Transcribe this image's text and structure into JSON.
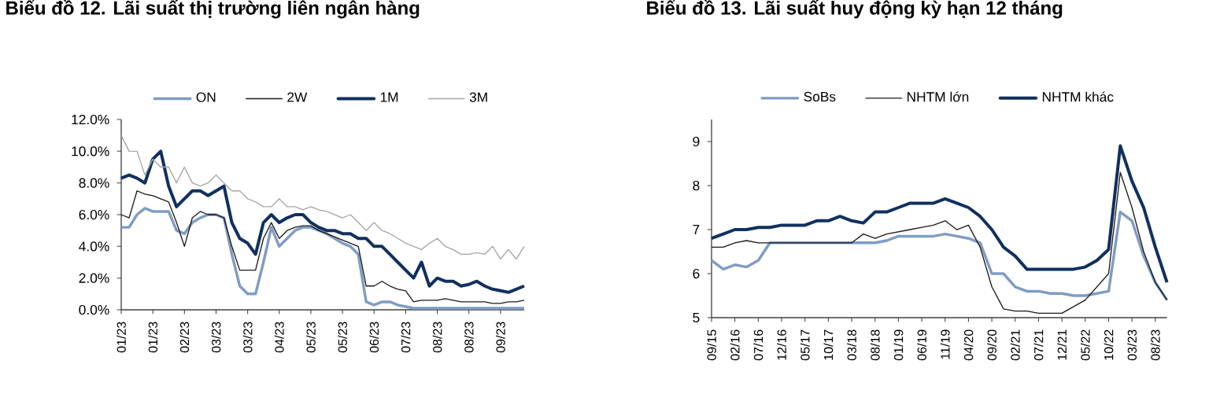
{
  "chart_data": [
    {
      "type": "line",
      "title": "Biểu đồ 12. Lãi suất thị trường liên ngân hàng",
      "categories": [
        "01/23",
        null,
        null,
        null,
        "01/23",
        null,
        null,
        null,
        "02/23",
        null,
        null,
        null,
        "03/23",
        null,
        null,
        null,
        "03/23",
        null,
        null,
        null,
        "04/23",
        null,
        null,
        null,
        "05/23",
        null,
        null,
        null,
        "05/23",
        null,
        null,
        null,
        "06/23",
        null,
        null,
        null,
        "07/23",
        null,
        null,
        null,
        "08/23",
        null,
        null,
        null,
        "08/23",
        null,
        null,
        null,
        "09/23",
        null,
        null,
        null
      ],
      "series": [
        {
          "name": "ON",
          "color": "#7f9cc4",
          "values": [
            5.2,
            5.2,
            6.0,
            6.4,
            6.2,
            6.2,
            6.2,
            5.0,
            4.8,
            5.5,
            5.8,
            6.0,
            6.0,
            5.8,
            3.5,
            1.5,
            1.0,
            1.0,
            3.0,
            5.2,
            4.0,
            4.5,
            5.0,
            5.2,
            5.2,
            5.0,
            4.8,
            4.5,
            4.2,
            4.0,
            3.5,
            0.5,
            0.3,
            0.5,
            0.5,
            0.3,
            0.2,
            0.1,
            0.1,
            0.1,
            0.1,
            0.1,
            0.1,
            0.1,
            0.1,
            0.1,
            0.1,
            0.1,
            0.1,
            0.1,
            0.1,
            0.1
          ]
        },
        {
          "name": "2W",
          "color": "#1a1a1a",
          "values": [
            6.0,
            5.8,
            7.5,
            7.3,
            7.2,
            7.0,
            6.8,
            5.5,
            4.0,
            5.8,
            6.2,
            6.0,
            6.0,
            5.8,
            4.0,
            2.5,
            2.5,
            2.5,
            4.5,
            5.5,
            4.5,
            5.0,
            5.2,
            5.3,
            5.3,
            5.0,
            4.8,
            4.6,
            4.4,
            4.2,
            4.0,
            1.5,
            1.5,
            1.8,
            1.5,
            1.3,
            1.2,
            0.5,
            0.6,
            0.6,
            0.6,
            0.7,
            0.6,
            0.5,
            0.5,
            0.5,
            0.5,
            0.4,
            0.4,
            0.5,
            0.5,
            0.6
          ]
        },
        {
          "name": "1M",
          "color": "#10305f",
          "values": [
            8.3,
            8.5,
            8.3,
            8.0,
            9.5,
            10.0,
            7.8,
            6.5,
            7.0,
            7.5,
            7.5,
            7.2,
            7.5,
            7.8,
            5.5,
            4.5,
            4.2,
            3.5,
            5.5,
            6.0,
            5.5,
            5.8,
            6.0,
            6.0,
            5.5,
            5.2,
            5.0,
            5.0,
            4.8,
            4.8,
            4.5,
            4.5,
            4.0,
            4.0,
            3.5,
            3.0,
            2.5,
            2.0,
            3.0,
            1.5,
            2.0,
            1.8,
            1.8,
            1.5,
            1.6,
            1.8,
            1.5,
            1.3,
            1.2,
            1.1,
            1.3,
            1.5
          ]
        },
        {
          "name": "3M",
          "color": "#a6a6a6",
          "values": [
            11.0,
            10.0,
            10.0,
            8.5,
            9.5,
            9.0,
            9.0,
            8.0,
            9.0,
            8.0,
            7.8,
            8.0,
            8.5,
            8.0,
            7.5,
            7.5,
            7.0,
            6.8,
            6.5,
            6.5,
            7.0,
            6.5,
            6.5,
            6.3,
            6.5,
            6.3,
            6.2,
            6.0,
            5.8,
            6.0,
            5.5,
            5.0,
            5.5,
            5.0,
            4.8,
            4.5,
            4.2,
            4.0,
            3.8,
            4.2,
            4.5,
            4.0,
            3.8,
            3.5,
            3.5,
            3.6,
            3.5,
            4.0,
            3.2,
            3.8,
            3.2,
            4.0
          ]
        }
      ],
      "ylim": [
        0,
        12
      ],
      "yticks": [
        {
          "value": 0,
          "label": "0.0%"
        },
        {
          "value": 2,
          "label": "2.0%"
        },
        {
          "value": 4,
          "label": "4.0%"
        },
        {
          "value": 6,
          "label": "6.0%"
        },
        {
          "value": 8,
          "label": "8.0%"
        },
        {
          "value": 10,
          "label": "10.0%"
        },
        {
          "value": 12,
          "label": "12.0%"
        }
      ],
      "legend": "top",
      "marker": "none"
    },
    {
      "type": "line",
      "title": "Biểu đồ 13. Lãi suất huy động kỳ hạn 12 tháng",
      "categories": [
        "09/15",
        null,
        "02/16",
        null,
        "07/16",
        null,
        "12/16",
        null,
        "05/17",
        null,
        "10/17",
        null,
        "03/18",
        null,
        "08/18",
        null,
        "01/19",
        null,
        "06/19",
        null,
        "11/19",
        null,
        "04/20",
        null,
        "09/20",
        null,
        "02/21",
        null,
        "07/21",
        null,
        "12/21",
        null,
        "05/22",
        null,
        "10/22",
        null,
        "03/23",
        null,
        "08/23",
        null
      ],
      "series": [
        {
          "name": "SoBs",
          "color": "#7f9cc4",
          "values": [
            6.3,
            6.1,
            6.2,
            6.15,
            6.3,
            6.7,
            6.7,
            6.7,
            6.7,
            6.7,
            6.7,
            6.7,
            6.7,
            6.7,
            6.7,
            6.75,
            6.85,
            6.85,
            6.85,
            6.85,
            6.9,
            6.85,
            6.8,
            6.7,
            6.0,
            6.0,
            5.7,
            5.6,
            5.6,
            5.55,
            5.55,
            5.5,
            5.5,
            5.55,
            5.6,
            7.4,
            7.2,
            6.4,
            5.8,
            5.4
          ]
        },
        {
          "name": "NHTM lớn",
          "color": "#1a1a1a",
          "values": [
            6.6,
            6.6,
            6.7,
            6.75,
            6.7,
            6.7,
            6.7,
            6.7,
            6.7,
            6.7,
            6.7,
            6.7,
            6.7,
            6.9,
            6.8,
            6.9,
            6.95,
            7.0,
            7.05,
            7.1,
            7.2,
            7.0,
            7.1,
            6.6,
            5.7,
            5.2,
            5.15,
            5.15,
            5.1,
            5.1,
            5.1,
            5.25,
            5.4,
            5.7,
            6.0,
            8.3,
            7.5,
            6.5,
            5.8,
            5.4
          ]
        },
        {
          "name": "NHTM khác",
          "color": "#10305f",
          "values": [
            6.8,
            6.9,
            7.0,
            7.0,
            7.05,
            7.05,
            7.1,
            7.1,
            7.1,
            7.2,
            7.2,
            7.3,
            7.2,
            7.15,
            7.4,
            7.4,
            7.5,
            7.6,
            7.6,
            7.6,
            7.7,
            7.6,
            7.5,
            7.3,
            7.0,
            6.6,
            6.4,
            6.1,
            6.1,
            6.1,
            6.1,
            6.1,
            6.15,
            6.3,
            6.55,
            8.9,
            8.1,
            7.5,
            6.6,
            5.8
          ]
        }
      ],
      "ylim": [
        5,
        9.5
      ],
      "yticks": [
        5,
        6,
        7,
        8,
        9
      ],
      "legend": "top",
      "marker": "none"
    }
  ]
}
